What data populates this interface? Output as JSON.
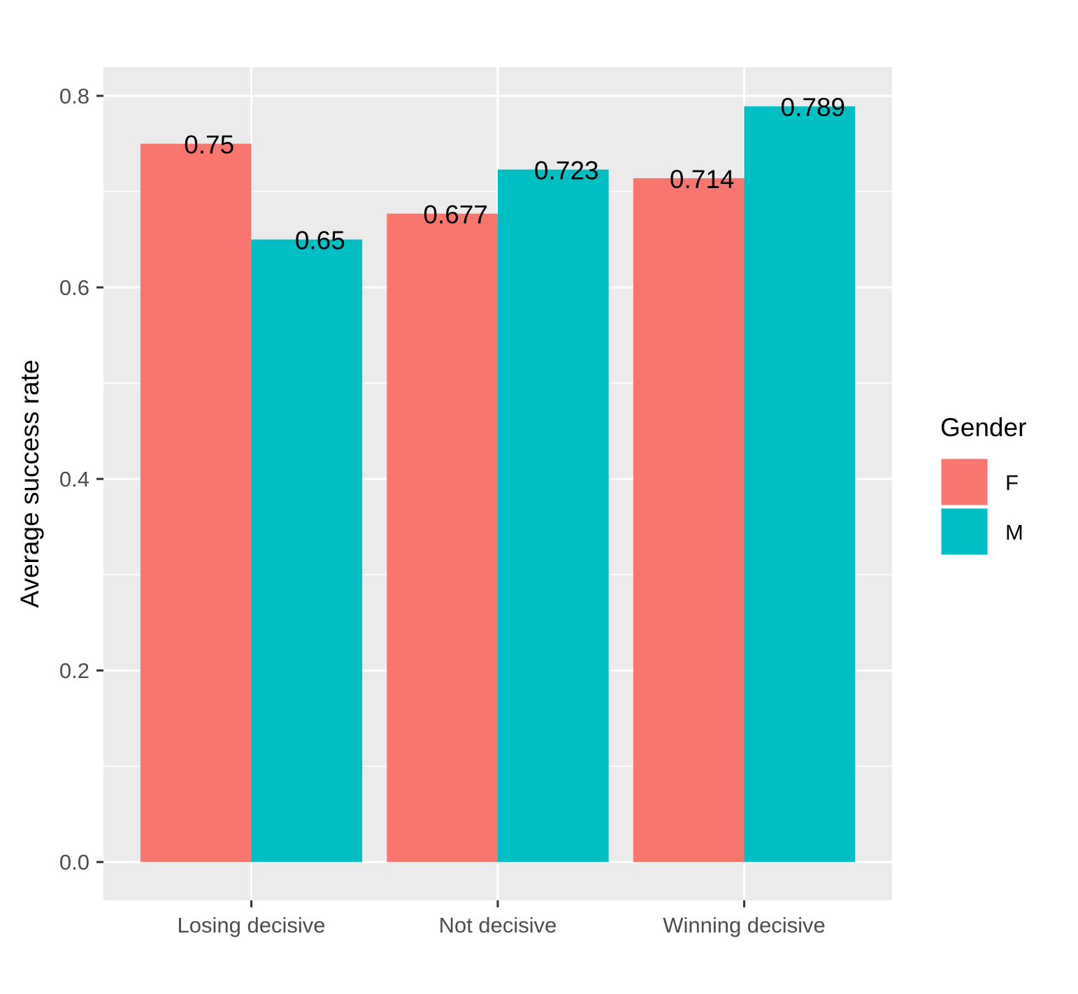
{
  "chart_data": {
    "type": "bar",
    "categories": [
      "Losing decisive",
      "Not decisive",
      "Winning decisive"
    ],
    "series": [
      {
        "name": "F",
        "values": [
          0.75,
          0.677,
          0.714
        ],
        "labels": [
          "0.75",
          "0.677",
          "0.714"
        ],
        "color": "#F8766D"
      },
      {
        "name": "M",
        "values": [
          0.65,
          0.723,
          0.789
        ],
        "labels": [
          "0.65",
          "0.723",
          "0.789"
        ],
        "color": "#00BFC4"
      }
    ],
    "title": "",
    "xlabel": "",
    "ylabel": "Average success rate",
    "ylim": [
      -0.04,
      0.83
    ],
    "yticks": [
      0.0,
      0.2,
      0.4,
      0.6,
      0.8
    ],
    "ytick_labels": [
      "0.0",
      "0.2",
      "0.4",
      "0.6",
      "0.8"
    ],
    "grid": true,
    "legend": {
      "title": "Gender",
      "placement": "right"
    },
    "colors": {
      "panel_background": "#EBEBEB",
      "grid": "#FFFFFF",
      "tick": "#333333"
    }
  }
}
